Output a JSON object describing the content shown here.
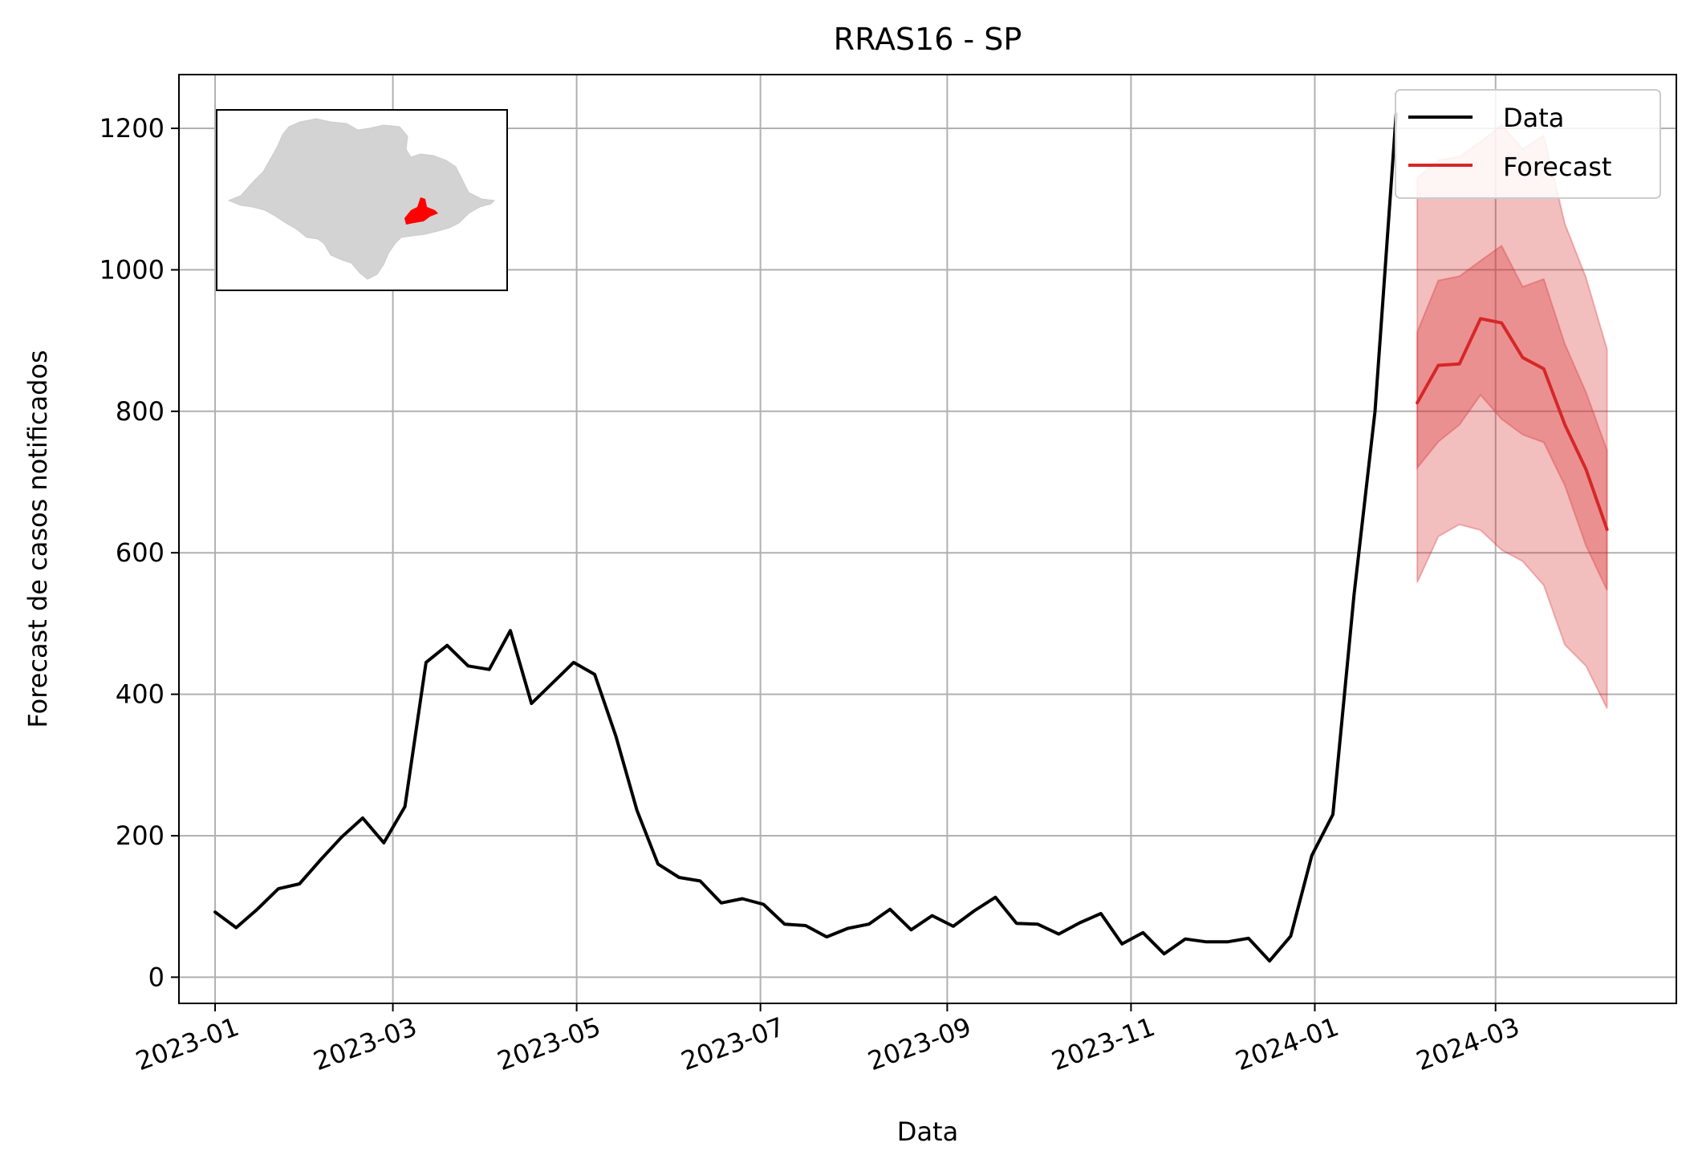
{
  "chart_data": {
    "type": "line",
    "title": "RRAS16 - SP",
    "xlabel": "Data",
    "ylabel": "Forecast de casos notificados",
    "xlim": [
      "2022-12-20",
      "2024-04-30"
    ],
    "ylim": [
      -37,
      1276
    ],
    "x_ticks": [
      "2023-01-01",
      "2023-03-01",
      "2023-05-01",
      "2023-07-01",
      "2023-09-01",
      "2023-11-01",
      "2024-01-01",
      "2024-03-01"
    ],
    "x_tick_labels": [
      "2023-01",
      "2023-03",
      "2023-05",
      "2023-07",
      "2023-09",
      "2023-11",
      "2024-01",
      "2024-03"
    ],
    "y_ticks": [
      0,
      200,
      400,
      600,
      800,
      1000,
      1200
    ],
    "y_tick_labels": [
      "0",
      "200",
      "400",
      "600",
      "800",
      "1000",
      "1200"
    ],
    "grid": true,
    "legend": {
      "position": "top-right",
      "entries": [
        "Data",
        "Forecast"
      ]
    },
    "series": [
      {
        "name": "Data",
        "color": "#000000",
        "x": [
          "2023-01-01",
          "2023-01-08",
          "2023-01-15",
          "2023-01-22",
          "2023-01-29",
          "2023-02-05",
          "2023-02-12",
          "2023-02-19",
          "2023-02-26",
          "2023-03-05",
          "2023-03-12",
          "2023-03-19",
          "2023-03-26",
          "2023-04-02",
          "2023-04-09",
          "2023-04-16",
          "2023-04-23",
          "2023-04-30",
          "2023-05-07",
          "2023-05-14",
          "2023-05-21",
          "2023-05-28",
          "2023-06-04",
          "2023-06-11",
          "2023-06-18",
          "2023-06-25",
          "2023-07-02",
          "2023-07-09",
          "2023-07-16",
          "2023-07-23",
          "2023-07-30",
          "2023-08-06",
          "2023-08-13",
          "2023-08-20",
          "2023-08-27",
          "2023-09-03",
          "2023-09-10",
          "2023-09-17",
          "2023-09-24",
          "2023-10-01",
          "2023-10-08",
          "2023-10-15",
          "2023-10-22",
          "2023-10-29",
          "2023-11-05",
          "2023-11-12",
          "2023-11-19",
          "2023-11-26",
          "2023-12-03",
          "2023-12-10",
          "2023-12-17",
          "2023-12-24",
          "2023-12-31",
          "2024-01-07",
          "2024-01-14",
          "2024-01-21",
          "2024-01-28"
        ],
        "y": [
          92,
          70,
          96,
          125,
          132,
          166,
          198,
          225,
          190,
          241,
          445,
          469,
          440,
          435,
          490,
          387,
          416,
          445,
          428,
          341,
          236,
          160,
          141,
          136,
          105,
          111,
          103,
          75,
          73,
          57,
          69,
          75,
          96,
          67,
          87,
          72,
          94,
          113,
          76,
          75,
          61,
          77,
          90,
          47,
          63,
          33,
          54,
          50,
          50,
          55,
          23,
          58,
          172,
          230,
          540,
          800,
          1220
        ]
      },
      {
        "name": "Forecast",
        "color": "#d62728",
        "x": [
          "2024-02-04",
          "2024-02-11",
          "2024-02-18",
          "2024-02-25",
          "2024-03-03",
          "2024-03-10",
          "2024-03-17",
          "2024-03-24",
          "2024-03-31",
          "2024-04-07"
        ],
        "y": [
          812,
          865,
          867,
          931,
          925,
          876,
          860,
          781,
          718,
          633
        ],
        "inner_band": {
          "lower": [
            720,
            757,
            781,
            823,
            789,
            767,
            756,
            695,
            610,
            547
          ],
          "upper": [
            912,
            985,
            991,
            1013,
            1034,
            976,
            987,
            895,
            827,
            745
          ]
        },
        "outer_band": {
          "lower": [
            558,
            623,
            640,
            632,
            604,
            588,
            554,
            470,
            440,
            380
          ],
          "upper": [
            1130,
            1155,
            1160,
            1181,
            1205,
            1171,
            1190,
            1065,
            989,
            888
          ]
        }
      }
    ]
  },
  "inset_map": {
    "description": "map of São Paulo state with the RRAS16 region highlighted",
    "base_color": "#d3d3d3",
    "highlight_color": "#ff0000"
  }
}
